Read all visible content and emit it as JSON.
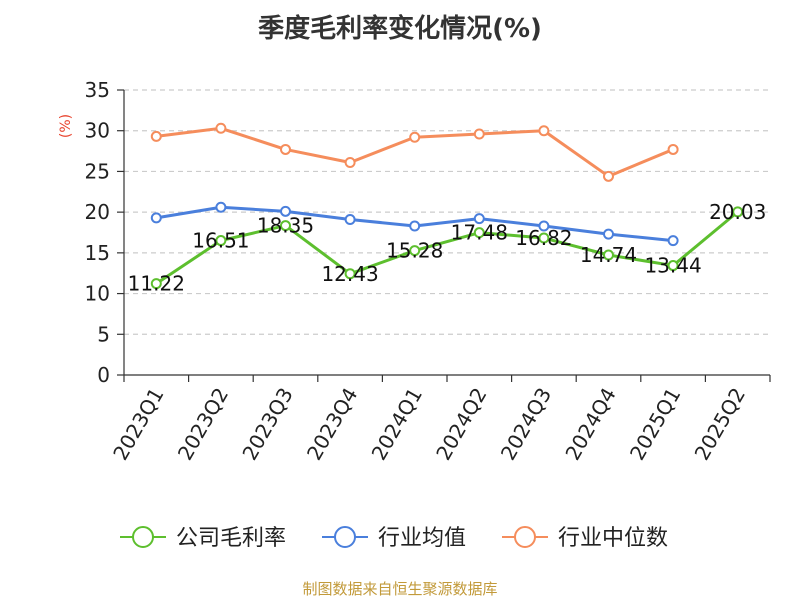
{
  "title": "季度毛利率变化情况(%)",
  "source": "制图数据来自恒生聚源数据库",
  "colors": {
    "company": "#5dbf2e",
    "industry_avg": "#4a7fdc",
    "industry_median": "#f58d5c",
    "unit": "#e8442e",
    "grid": "#cccccc",
    "axis": "#333333"
  },
  "chart_data": {
    "type": "line",
    "y_unit": "(%)",
    "ylim": [
      0,
      35
    ],
    "yticks": [
      "0",
      "5",
      "10",
      "15",
      "20",
      "25",
      "30",
      "35"
    ],
    "categories": [
      "2023Q1",
      "2023Q2",
      "2023Q3",
      "2023Q4",
      "2024Q1",
      "2024Q2",
      "2024Q3",
      "2024Q4",
      "2025Q1",
      "2025Q2"
    ],
    "grid": true,
    "legend_position": "bottom",
    "series": [
      {
        "name": "公司毛利率",
        "values": [
          11.22,
          16.51,
          18.35,
          12.43,
          15.28,
          17.48,
          16.82,
          14.74,
          13.44,
          20.03
        ],
        "labels": [
          "11.22",
          "16.51",
          "18.35",
          "12.43",
          "15.28",
          "17.48",
          "16.82",
          "14.74",
          "13.44",
          "20.03"
        ]
      },
      {
        "name": "行业均值",
        "values": [
          19.3,
          20.6,
          20.1,
          19.1,
          18.3,
          19.2,
          18.3,
          17.3,
          16.5,
          null
        ]
      },
      {
        "name": "行业中位数",
        "values": [
          29.3,
          30.3,
          27.7,
          26.1,
          29.2,
          29.6,
          30.0,
          24.4,
          27.7,
          null
        ]
      }
    ]
  }
}
